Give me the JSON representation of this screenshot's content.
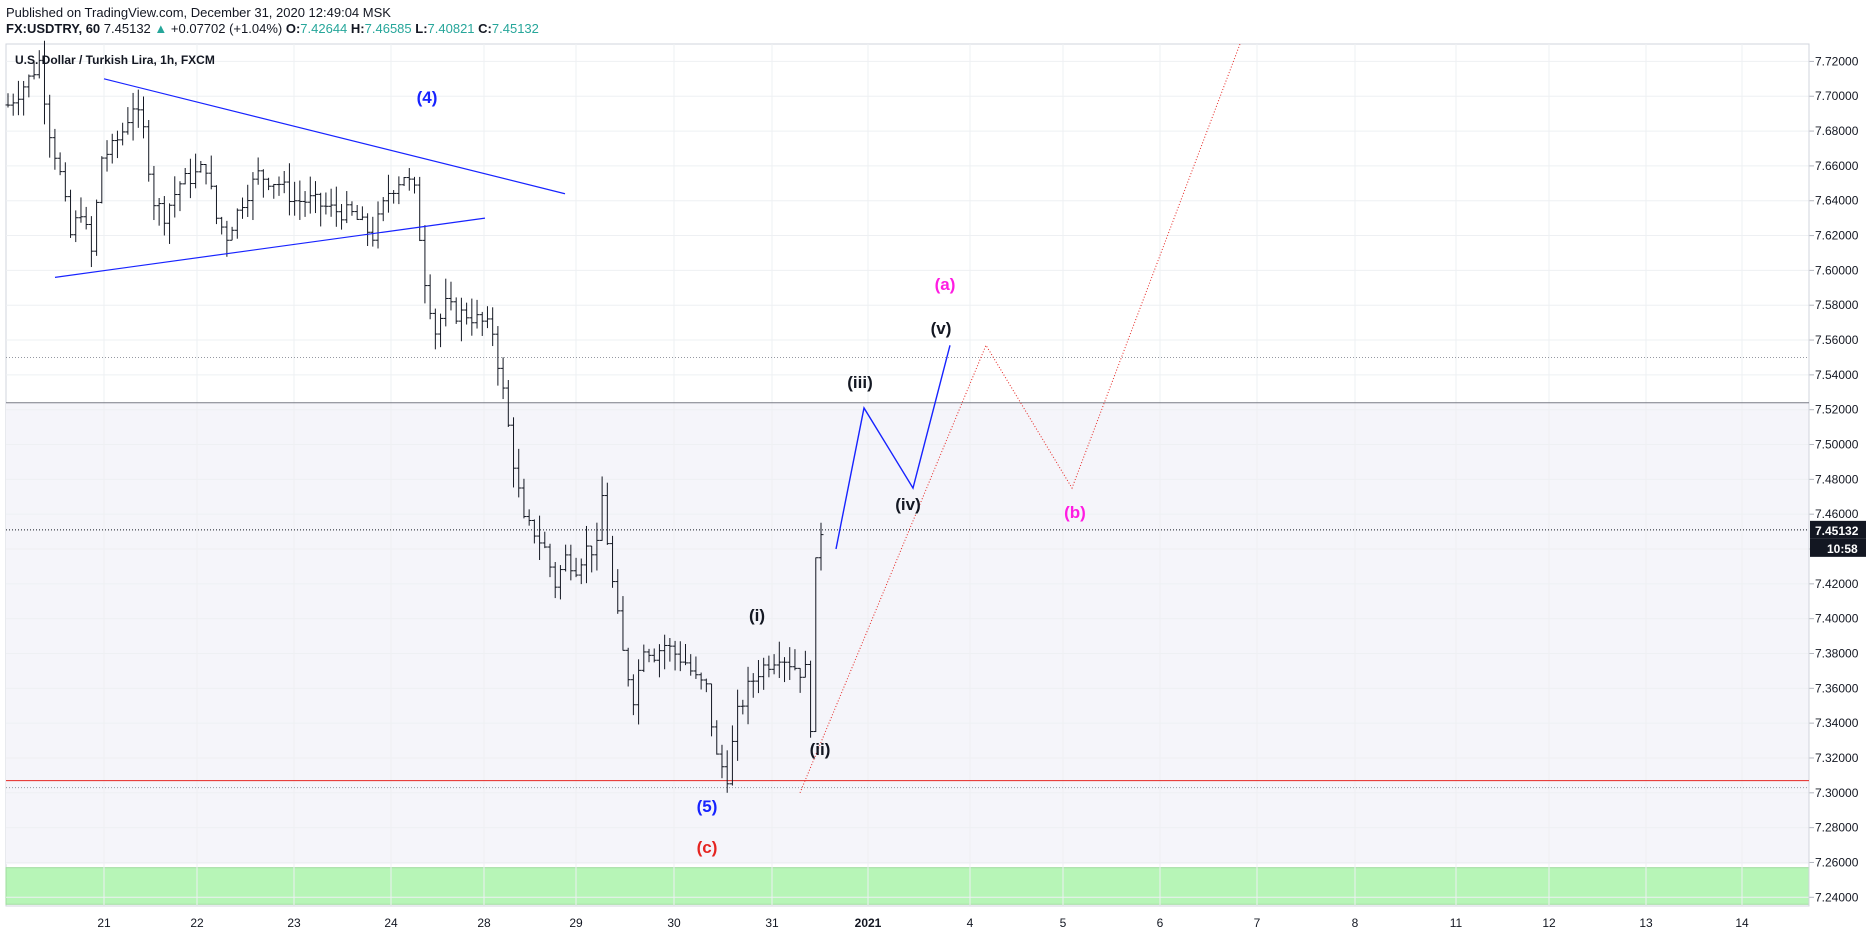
{
  "header": {
    "published": "Published on TradingView.com, December 31, 2020 12:49:04 MSK",
    "symbol": "FX:USDTRY, 60",
    "last": "7.45132",
    "change_arrow": "▲",
    "change": "+0.07702 (+1.04%)",
    "open_label": "O:",
    "open": "7.42644",
    "high_label": "H:",
    "high": "7.46585",
    "low_label": "L:",
    "low": "7.40821",
    "close_label": "C:",
    "close": "7.45132"
  },
  "colors": {
    "grid": "#eef0f3",
    "bar": "#131722",
    "blue": "#1723ff",
    "red": "#e52521",
    "magenta": "#ff1ce2",
    "green_zone": "#b7f5b7",
    "band": "#f5f5fa",
    "price_tag_bg": "#131722"
  },
  "chart_data": {
    "type": "ohlc",
    "title": "U.S. Dollar / Turkish Lira, 1h, FXCM",
    "ylim": [
      7.235,
      7.73
    ],
    "y_ticks": [
      "7.24000",
      "7.26000",
      "7.28000",
      "7.30000",
      "7.32000",
      "7.34000",
      "7.36000",
      "7.38000",
      "7.40000",
      "7.42000",
      "7.44000",
      "7.46000",
      "7.48000",
      "7.50000",
      "7.52000",
      "7.54000",
      "7.56000",
      "7.58000",
      "7.60000",
      "7.62000",
      "7.64000",
      "7.66000",
      "7.68000",
      "7.70000",
      "7.72000"
    ],
    "x_ticks": [
      "21",
      "22",
      "23",
      "24",
      "28",
      "29",
      "30",
      "31",
      "2021",
      "4",
      "5",
      "6",
      "7",
      "8",
      "11",
      "12",
      "13",
      "14"
    ],
    "last_price_label": "7.45132",
    "countdown_label": "10:58",
    "price_path_knots": [
      [
        0,
        7.695
      ],
      [
        4,
        7.71
      ],
      [
        6,
        7.72
      ],
      [
        8,
        7.68
      ],
      [
        10,
        7.655
      ],
      [
        12,
        7.62
      ],
      [
        14,
        7.635
      ],
      [
        16,
        7.61
      ],
      [
        18,
        7.665
      ],
      [
        20,
        7.67
      ],
      [
        22,
        7.68
      ],
      [
        24,
        7.695
      ],
      [
        26,
        7.68
      ],
      [
        28,
        7.64
      ],
      [
        30,
        7.632
      ],
      [
        33,
        7.65
      ],
      [
        36,
        7.655
      ],
      [
        38,
        7.66
      ],
      [
        40,
        7.63
      ],
      [
        42,
        7.62
      ],
      [
        45,
        7.64
      ],
      [
        48,
        7.655
      ],
      [
        52,
        7.65
      ],
      [
        55,
        7.64
      ],
      [
        58,
        7.64
      ],
      [
        62,
        7.635
      ],
      [
        66,
        7.632
      ],
      [
        70,
        7.62
      ],
      [
        73,
        7.645
      ],
      [
        76,
        7.655
      ],
      [
        78,
        7.645
      ],
      [
        80,
        7.595
      ],
      [
        82,
        7.565
      ],
      [
        84,
        7.58
      ],
      [
        86,
        7.575
      ],
      [
        88,
        7.575
      ],
      [
        91,
        7.57
      ],
      [
        93,
        7.565
      ],
      [
        95,
        7.53
      ],
      [
        97,
        7.49
      ],
      [
        99,
        7.455
      ],
      [
        101,
        7.45
      ],
      [
        103,
        7.44
      ],
      [
        105,
        7.42
      ],
      [
        107,
        7.435
      ],
      [
        109,
        7.43
      ],
      [
        111,
        7.44
      ],
      [
        113,
        7.44
      ],
      [
        114,
        7.47
      ],
      [
        116,
        7.42
      ],
      [
        118,
        7.38
      ],
      [
        120,
        7.355
      ],
      [
        122,
        7.385
      ],
      [
        124,
        7.38
      ],
      [
        126,
        7.385
      ],
      [
        128,
        7.38
      ],
      [
        130,
        7.375
      ],
      [
        132,
        7.365
      ],
      [
        134,
        7.36
      ],
      [
        136,
        7.32
      ],
      [
        138,
        7.31
      ],
      [
        140,
        7.345
      ],
      [
        142,
        7.36
      ],
      [
        144,
        7.37
      ],
      [
        146,
        7.375
      ],
      [
        148,
        7.38
      ],
      [
        150,
        7.375
      ],
      [
        152,
        7.37
      ],
      [
        153,
        7.37
      ],
      [
        154,
        7.34
      ],
      [
        155,
        7.43
      ],
      [
        156,
        7.451
      ]
    ],
    "candles_count": 157,
    "annotations": [
      {
        "label": "(4)",
        "color": "blue"
      },
      {
        "label": "(5)",
        "color": "blue"
      },
      {
        "label": "(c)",
        "color": "red"
      },
      {
        "label": "(i)",
        "color": "black"
      },
      {
        "label": "(ii)",
        "color": "black"
      },
      {
        "label": "(iii)",
        "color": "black"
      },
      {
        "label": "(iv)",
        "color": "black"
      },
      {
        "label": "(v)",
        "color": "black"
      },
      {
        "label": "(a)",
        "color": "magenta"
      },
      {
        "label": "(b)",
        "color": "magenta"
      }
    ],
    "wave_projection_blue": [
      {
        "x": "31.5",
        "y": 7.44
      },
      {
        "x": "2021",
        "y": 7.521
      },
      {
        "x": "2021+",
        "y": 7.475
      },
      {
        "x": "4-",
        "y": 7.557
      }
    ],
    "wave_projection_red_dotted": [
      {
        "y": 7.3
      },
      {
        "y": 7.557
      },
      {
        "y": 7.475
      },
      {
        "y": 7.73
      }
    ],
    "horizontal_levels": [
      7.55,
      7.524,
      7.451,
      7.307,
      7.304
    ],
    "support_zone": [
      7.236,
      7.257
    ],
    "grid": true
  }
}
